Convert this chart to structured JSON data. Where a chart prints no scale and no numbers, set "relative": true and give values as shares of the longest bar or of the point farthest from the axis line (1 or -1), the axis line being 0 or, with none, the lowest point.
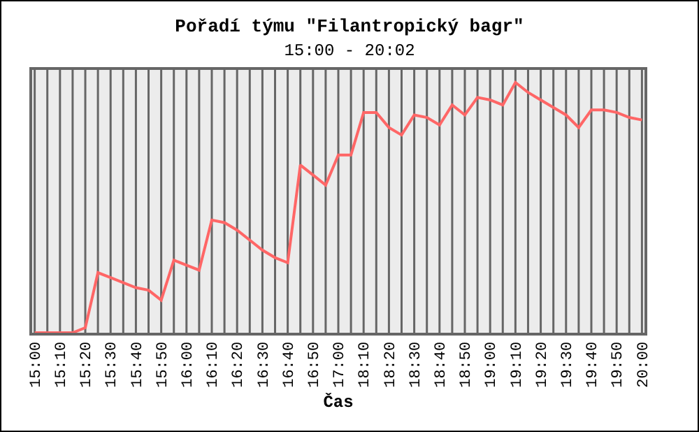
{
  "chart_data": {
    "type": "line",
    "title": "Pořadí týmu \"Filantropický bagr\"",
    "subtitle": "15:00 - 20:02",
    "xlabel": "Čas",
    "relative": true,
    "grid": "x",
    "marker": "none",
    "line_style": "solid",
    "categories": [
      "15:00",
      null,
      "15:10",
      null,
      "15:20",
      null,
      "15:30",
      null,
      "15:40",
      null,
      "15:50",
      null,
      "16:00",
      null,
      "16:10",
      null,
      "16:20",
      null,
      "16:30",
      null,
      "16:40",
      null,
      "16:50",
      null,
      "17:00",
      null,
      "18:10",
      null,
      "18:20",
      null,
      "18:30",
      null,
      "18:40",
      null,
      "18:50",
      null,
      "19:00",
      null,
      "19:10",
      null,
      "19:20",
      null,
      "19:30",
      null,
      "19:40",
      null,
      "19:50",
      null,
      "20:00"
    ],
    "series": [
      {
        "color": "#ff6666",
        "values": [
          0,
          0,
          0,
          0,
          0.02,
          0.24,
          0.22,
          0.2,
          0.18,
          0.17,
          0.13,
          0.29,
          0.27,
          0.25,
          0.45,
          0.44,
          0.41,
          0.37,
          0.33,
          0.3,
          0.28,
          0.67,
          0.63,
          0.59,
          0.71,
          0.71,
          0.88,
          0.88,
          0.82,
          0.79,
          0.87,
          0.86,
          0.83,
          0.91,
          0.87,
          0.94,
          0.93,
          0.91,
          1,
          0.96,
          0.93,
          0.9,
          0.87,
          0.82,
          0.89,
          0.89,
          0.88,
          0.86,
          0.85
        ]
      }
    ]
  }
}
